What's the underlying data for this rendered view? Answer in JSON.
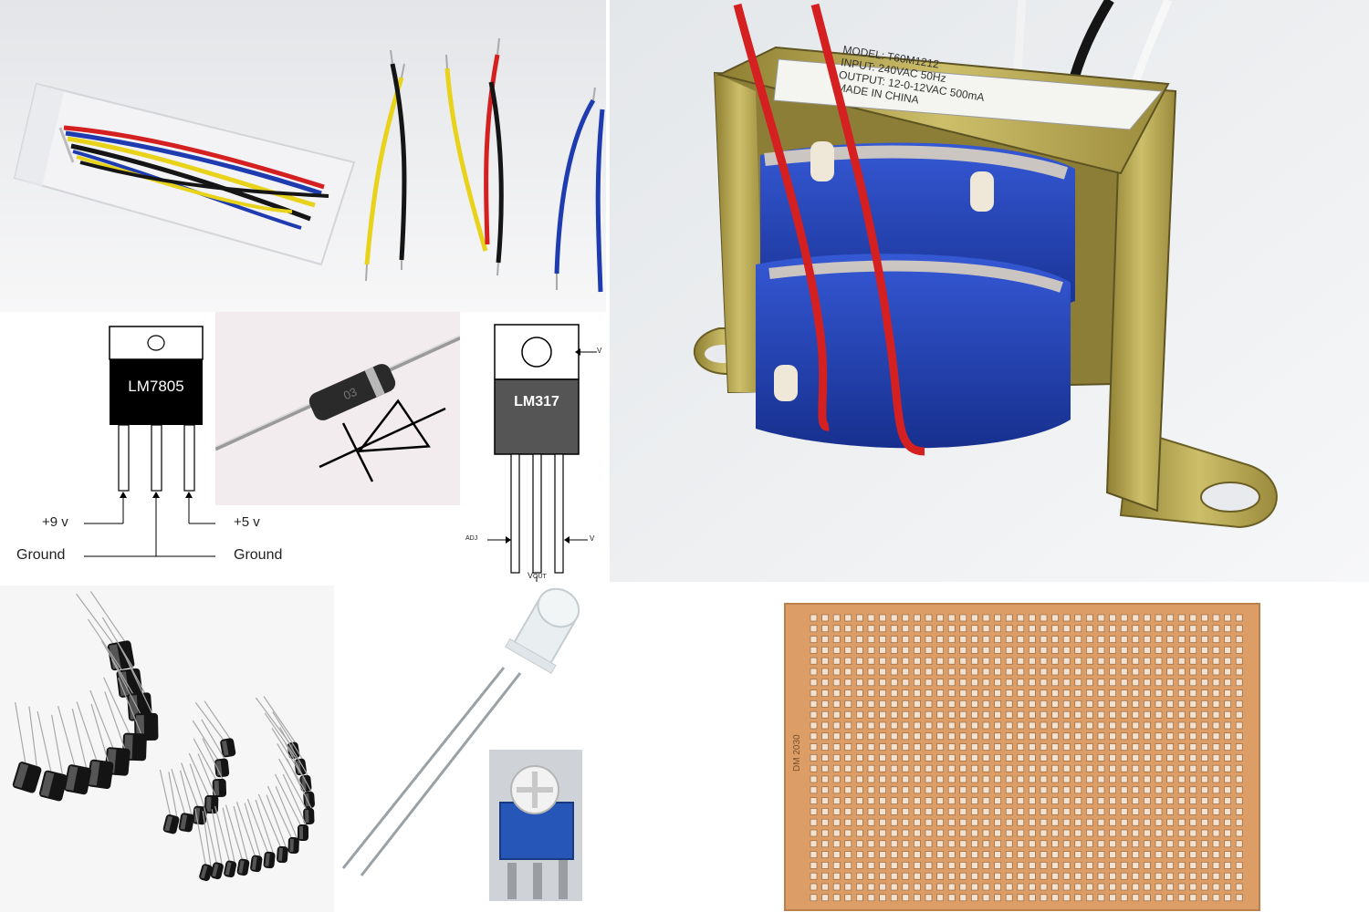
{
  "lm7805": {
    "chip_label": "LM7805",
    "pin_left": "+9 v",
    "pin_right": "+5 v",
    "ground_left": "Ground",
    "ground_right": "Ground"
  },
  "lm317": {
    "chip_label": "LM317",
    "pin_top": "V",
    "pin_left": "ADJ",
    "pin_right": "V",
    "pin_bottom": "V",
    "pin_bottom_sub": "OUT"
  },
  "transformer": {
    "label_lines": [
      "MODEL: T60M1212",
      "INPUT: 240VAC 50Hz",
      "OUTPUT: 12-0-12VAC 500mA",
      "MADE IN CHINA"
    ]
  },
  "diode": {
    "body_text": "03"
  },
  "pcb": {
    "silk_text": "DM 2030"
  },
  "colors": {
    "wire_red": "#d42020",
    "wire_yellow": "#e8d21a",
    "wire_black": "#151515",
    "wire_blue": "#1e3cb0",
    "copper": "#d99a62",
    "brass": "#b7a64e",
    "coil_blue": "#1e3fb8"
  }
}
